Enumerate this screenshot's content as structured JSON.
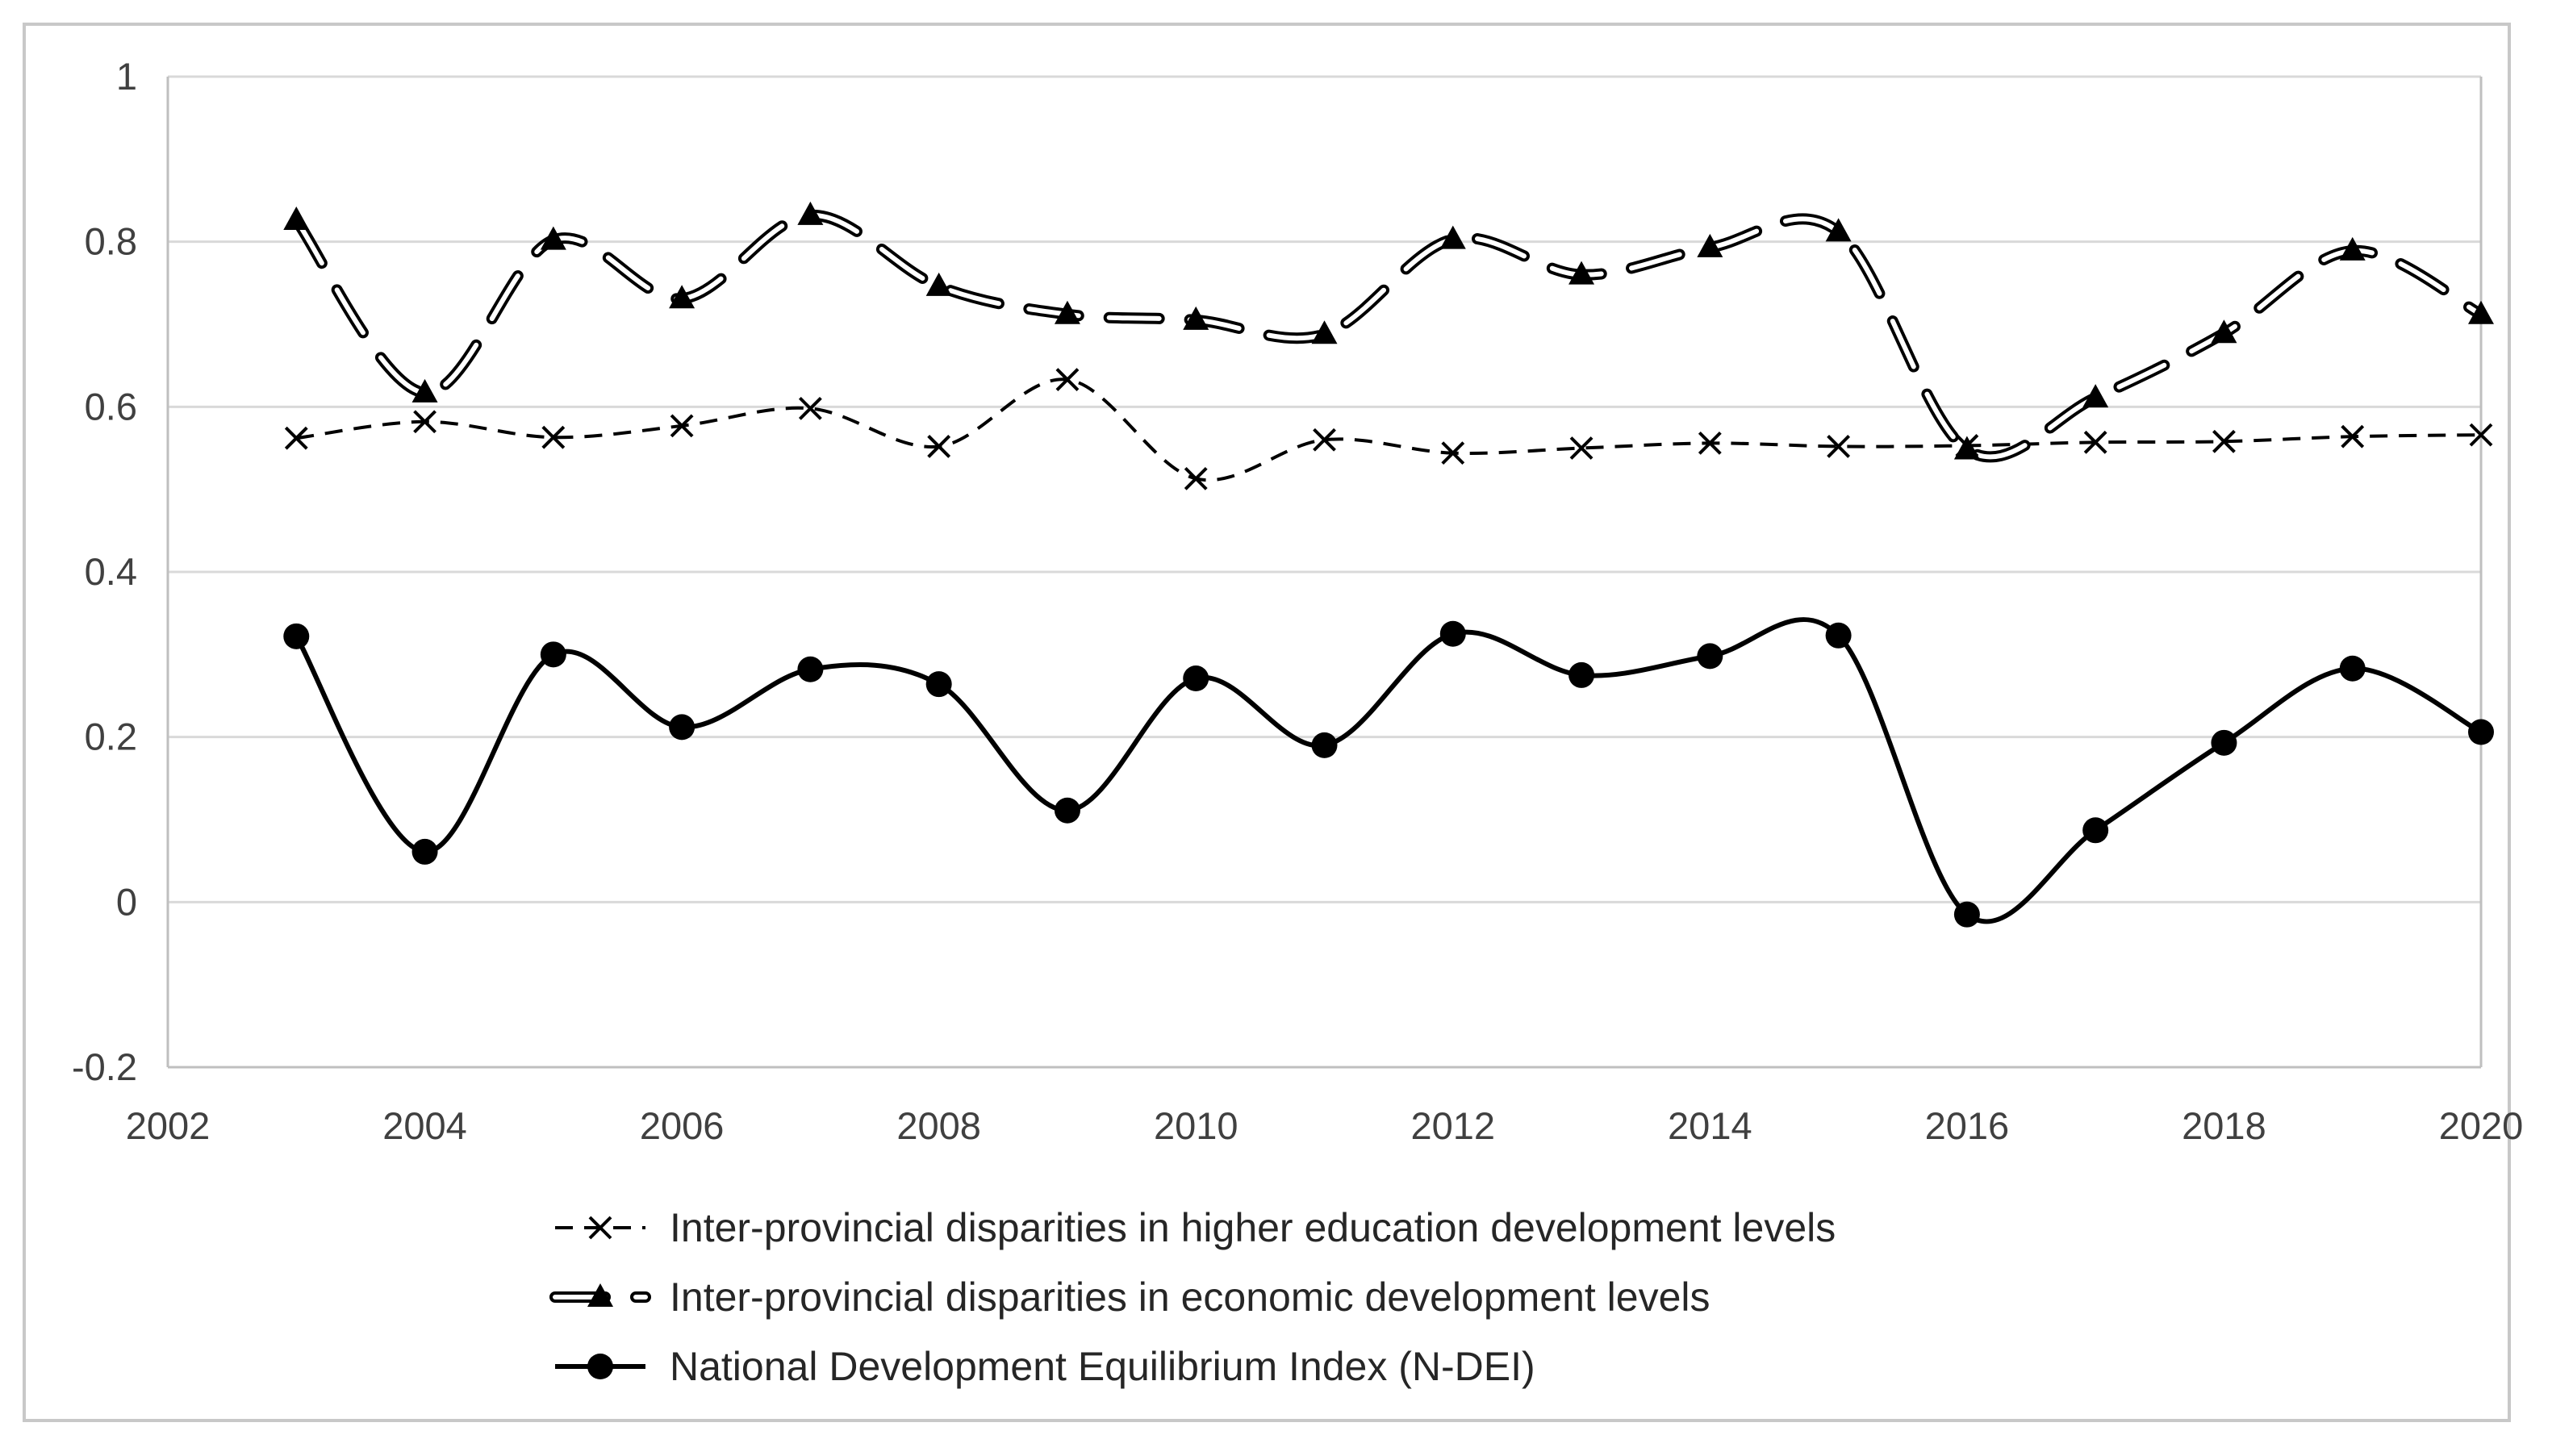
{
  "chart_data": {
    "type": "line",
    "title": "",
    "xlabel": "",
    "ylabel": "",
    "xlim": [
      2002,
      2020
    ],
    "ylim": [
      -0.2,
      1
    ],
    "x_ticks": [
      2002,
      2004,
      2006,
      2008,
      2010,
      2012,
      2014,
      2016,
      2018,
      2020
    ],
    "y_ticks": [
      -0.2,
      0,
      0.2,
      0.4,
      0.6,
      0.8,
      1
    ],
    "y_tick_labels": [
      "-0.2",
      "0",
      "0.2",
      "0.4",
      "0.6",
      "0.8",
      "1"
    ],
    "grid": "horizontal",
    "legend_position": "bottom",
    "x": [
      2003,
      2004,
      2005,
      2006,
      2007,
      2008,
      2009,
      2010,
      2011,
      2012,
      2013,
      2014,
      2015,
      2016,
      2017,
      2018,
      2019,
      2020
    ],
    "series": [
      {
        "name": "Inter-provincial disparities in higher education development levels",
        "style": "dashed",
        "marker": "x",
        "values": [
          0.562,
          0.582,
          0.563,
          0.577,
          0.598,
          0.552,
          0.633,
          0.513,
          0.56,
          0.544,
          0.55,
          0.556,
          0.552,
          0.553,
          0.557,
          0.558,
          0.564,
          0.566
        ]
      },
      {
        "name": "Inter-provincial disparities in economic development levels",
        "style": "long-dash-double",
        "marker": "triangle",
        "values": [
          0.826,
          0.617,
          0.802,
          0.731,
          0.832,
          0.746,
          0.712,
          0.705,
          0.688,
          0.803,
          0.76,
          0.793,
          0.812,
          0.548,
          0.611,
          0.689,
          0.789,
          0.712
        ]
      },
      {
        "name": "National Development Equilibrium Index (N-DEI)",
        "style": "solid",
        "marker": "circle",
        "values": [
          0.322,
          0.061,
          0.3,
          0.212,
          0.282,
          0.264,
          0.111,
          0.271,
          0.19,
          0.325,
          0.275,
          0.298,
          0.323,
          -0.015,
          0.087,
          0.193,
          0.283,
          0.206
        ]
      }
    ]
  },
  "colors": {
    "line": "#000000",
    "grid": "#d9d9d9",
    "axis": "#bfbfbf",
    "tick_text": "#404040"
  }
}
